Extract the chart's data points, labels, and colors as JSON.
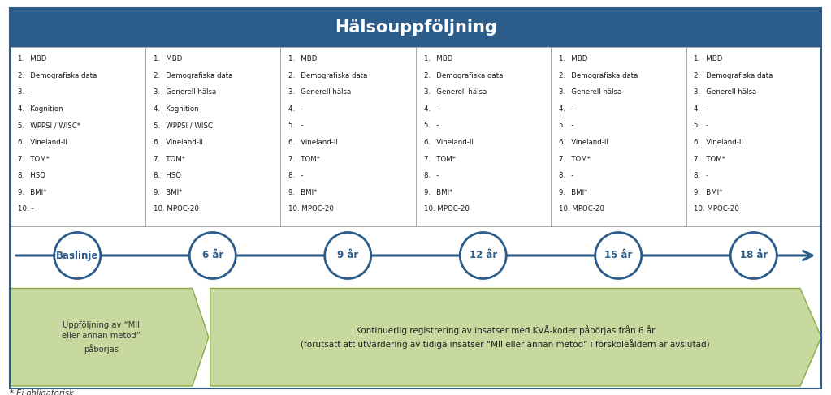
{
  "title": "Hälsouppföljning",
  "title_bg_color": "#2B5C8A",
  "title_text_color": "#FFFFFF",
  "outer_border_color": "#2B5C8A",
  "box_border_color": "#AAAAAA",
  "box_columns": [
    {
      "label": "Baslinje",
      "items": [
        "1.  MBD",
        "2.  Demografiska data",
        "3.  -",
        "4.  Kognition",
        "5.  WPPSI / WISC*",
        "6.  Vineland-II",
        "7.  TOM*",
        "8.  HSQ",
        "9.  BMI*",
        "10. -"
      ]
    },
    {
      "label": "6 år",
      "items": [
        "1.  MBD",
        "2.  Demografiska data",
        "3.  Generell hälsa",
        "4.  Kognition",
        "5.  WPPSI / WISC",
        "6.  Vineland-II",
        "7.  TOM*",
        "8.  HSQ",
        "9.  BMI*",
        "10. MPOC-20"
      ]
    },
    {
      "label": "9 år",
      "items": [
        "1.  MBD",
        "2.  Demografiska data",
        "3.  Generell hälsa",
        "4.  -",
        "5.  -",
        "6.  Vineland-II",
        "7.  TOM*",
        "8.  -",
        "9.  BMI*",
        "10. MPOC-20"
      ]
    },
    {
      "label": "12 år",
      "items": [
        "1.  MBD",
        "2.  Demografiska data",
        "3.  Generell hälsa",
        "4.  -",
        "5.  -",
        "6.  Vineland-II",
        "7.  TOM*",
        "8.  -",
        "9.  BMI*",
        "10. MPOC-20"
      ]
    },
    {
      "label": "15 år",
      "items": [
        "1.  MBD",
        "2.  Demografiska data",
        "3.  Generell hälsa",
        "4.  -",
        "5.  -",
        "6.  Vineland-II",
        "7.  TOM*",
        "8.  -",
        "9.  BMI*",
        "10. MPOC-20"
      ]
    },
    {
      "label": "18 år",
      "items": [
        "1.  MBD",
        "2.  Demografiska data",
        "3.  Generell hälsa",
        "4.  -",
        "5.  -",
        "6.  Vineland-II",
        "7.  TOM*",
        "8.  -",
        "9.  BMI*",
        "10. MPOC-20"
      ]
    }
  ],
  "timeline_color": "#2B5C8A",
  "circle_fill": "#FFFFFF",
  "circle_edge": "#2B5C8A",
  "arrow1_text": "Uppföljning av “MII\neller annan metod”\npåbörjas",
  "arrow1_color": "#C8D9A0",
  "arrow1_edge": "#8AAA45",
  "arrow2_text": "Kontinuerlig registrering av insatser med KVÅ-koder påbörjas från 6 år\n(förutsatt att utvärdering av tidiga insatser “MII eller annan metod” i förskoleåldern är avslutad)",
  "arrow2_color": "#C8D9A0",
  "arrow2_edge": "#8AAA45",
  "footnote": "* Ej obligatorisk",
  "bg_color": "#FFFFFF",
  "fig_width": 10.23,
  "fig_height": 4.87,
  "dpi": 100
}
